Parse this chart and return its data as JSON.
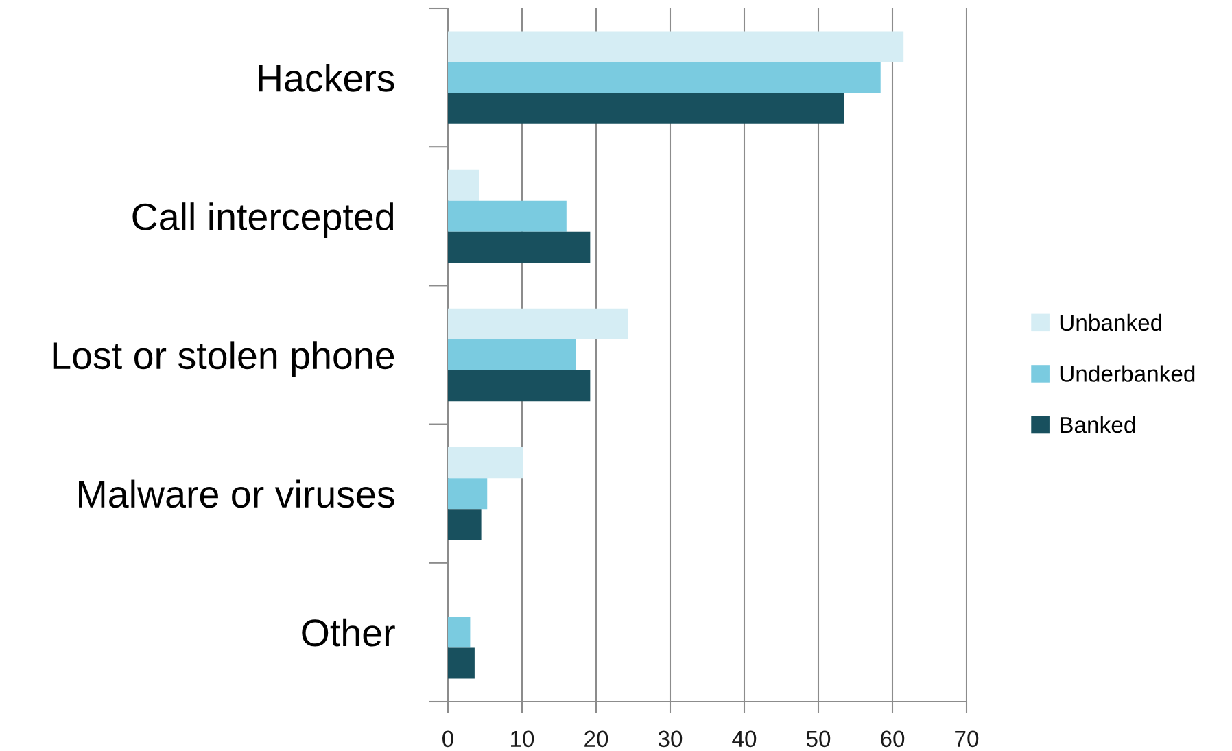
{
  "chart_data": {
    "type": "bar",
    "orientation": "horizontal",
    "categories": [
      "Hackers",
      "Call intercepted",
      "Lost or stolen phone",
      "Malware or viruses",
      "Other"
    ],
    "series": [
      {
        "name": "Unbanked",
        "color": "#d5edf4",
        "values": [
          61.5,
          4.2,
          24.3,
          10.1,
          null
        ]
      },
      {
        "name": "Underbanked",
        "color": "#7acbe0",
        "values": [
          58.4,
          16.0,
          17.3,
          5.3,
          3.0
        ]
      },
      {
        "name": "Banked",
        "color": "#18505e",
        "values": [
          53.5,
          19.2,
          19.2,
          4.5,
          3.6
        ]
      }
    ],
    "xlim": [
      0,
      70
    ],
    "xticks": [
      0,
      10,
      20,
      30,
      40,
      50,
      60,
      70
    ],
    "grid": "x",
    "legend": "right"
  }
}
